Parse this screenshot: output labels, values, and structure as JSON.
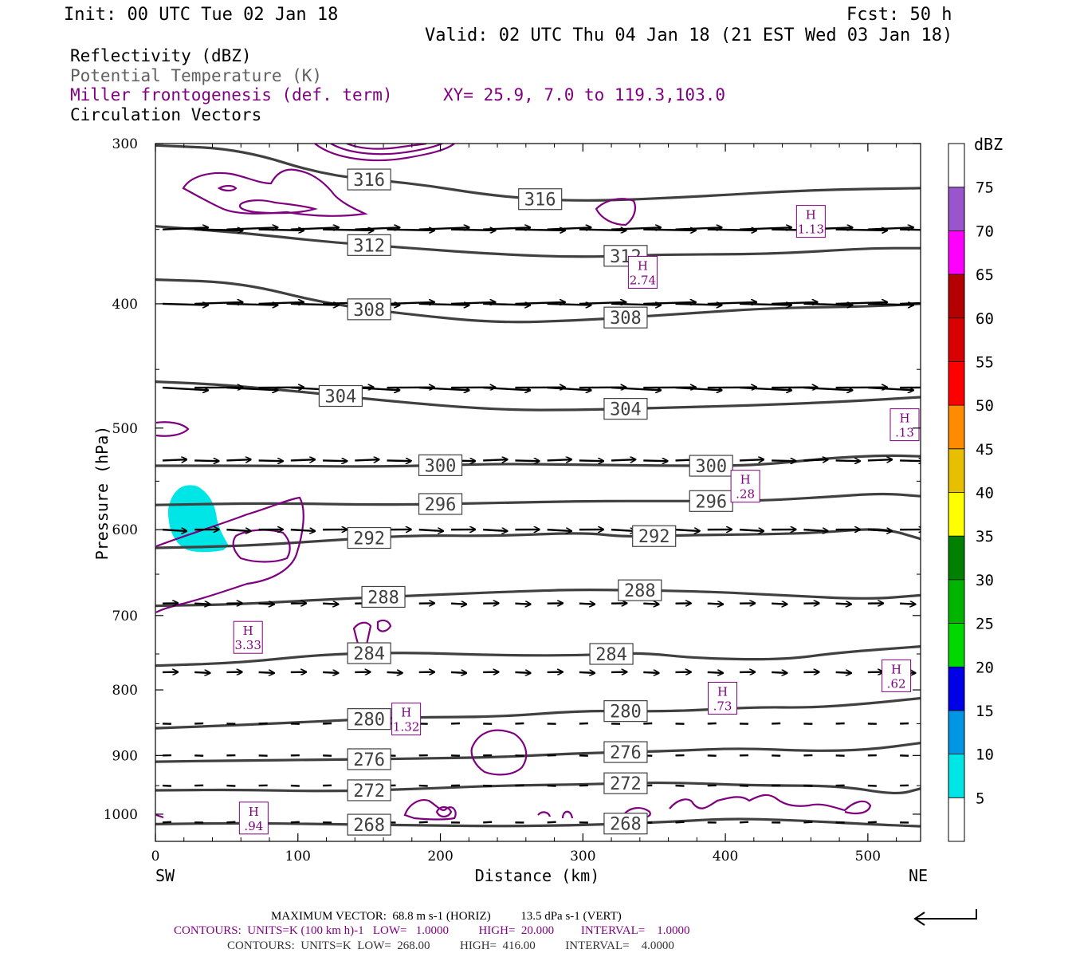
{
  "header": {
    "init": "Init: 00 UTC Tue 02 Jan 18",
    "fcst": "Fcst:   50 h",
    "valid": "Valid: 02 UTC Thu 04 Jan 18 (21 EST Wed 03 Jan 18)",
    "fields": [
      {
        "label": "Reflectivity (dBZ)",
        "color": "#000000"
      },
      {
        "label": "Potential Temperature (K)",
        "color": "#606060"
      },
      {
        "label": "Miller frontogenesis (def. term)",
        "color": "#7f007f"
      },
      {
        "label": "Circulation Vectors",
        "color": "#000000"
      }
    ],
    "xy": "XY=  25.9,  7.0 to 119.3,103.0"
  },
  "axes": {
    "ylabel": "Pressure (hPa)",
    "xlabel": "Distance (km)",
    "y_ticks": [
      "300",
      "400",
      "500",
      "600",
      "700",
      "800",
      "900",
      "1000"
    ],
    "x_ticks": [
      "0",
      "100",
      "200",
      "300",
      "400",
      "500"
    ],
    "left_end": "SW",
    "right_end": "NE"
  },
  "colorbar": {
    "title": "dBZ",
    "labels": [
      "5",
      "10",
      "15",
      "20",
      "25",
      "30",
      "35",
      "40",
      "45",
      "50",
      "55",
      "60",
      "65",
      "70",
      "75"
    ],
    "colors": [
      "#ffffff",
      "#00e5e5",
      "#0096e6",
      "#0000e6",
      "#00d800",
      "#00b400",
      "#008000",
      "#ffff00",
      "#e6c000",
      "#ff8c00",
      "#ff0000",
      "#d80000",
      "#b40000",
      "#ff00ff",
      "#9955cc",
      "#ffffff"
    ]
  },
  "footer": {
    "max_vector": "MAXIMUM VECTOR:  68.8 m s-1 (HORIZ)          13.5 dPa s-1 (VERT)",
    "contours_purple": "CONTOURS:  UNITS=K (100 km h)-1   LOW=   1.0000          HIGH=  20.000         INTERVAL=    1.0000",
    "contours_gray": "CONTOURS:  UNITS=K  LOW=  268.00          HIGH=  416.00          INTERVAL=    4.0000"
  },
  "chart_data": {
    "type": "line",
    "x_range": [
      0,
      537
    ],
    "y_range": [
      300,
      1050
    ],
    "y_log": true,
    "theta_contours": [
      {
        "label": "316",
        "points": [
          [
            0,
            301
          ],
          [
            60,
            303
          ],
          [
            120,
            318
          ],
          [
            180,
            322
          ],
          [
            240,
            330
          ],
          [
            300,
            333
          ],
          [
            380,
            330
          ],
          [
            460,
            326
          ],
          [
            537,
            325
          ]
        ]
      },
      {
        "label": "312",
        "points": [
          [
            0,
            348
          ],
          [
            60,
            352
          ],
          [
            120,
            358
          ],
          [
            180,
            362
          ],
          [
            240,
            366
          ],
          [
            300,
            368
          ],
          [
            360,
            366
          ],
          [
            430,
            366
          ],
          [
            500,
            362
          ],
          [
            537,
            362
          ]
        ]
      },
      {
        "label": "308",
        "points": [
          [
            0,
            383
          ],
          [
            60,
            385
          ],
          [
            120,
            400
          ],
          [
            180,
            408
          ],
          [
            240,
            414
          ],
          [
            300,
            412
          ],
          [
            360,
            408
          ],
          [
            430,
            403
          ],
          [
            500,
            402
          ],
          [
            537,
            400
          ]
        ]
      },
      {
        "label": "304",
        "points": [
          [
            0,
            460
          ],
          [
            40,
            462
          ],
          [
            100,
            468
          ],
          [
            160,
            476
          ],
          [
            240,
            484
          ],
          [
            300,
            484
          ],
          [
            360,
            482
          ],
          [
            420,
            480
          ],
          [
            480,
            477
          ],
          [
            537,
            473
          ]
        ]
      },
      {
        "label": "300",
        "points": [
          [
            0,
            535
          ],
          [
            80,
            535
          ],
          [
            160,
            536
          ],
          [
            240,
            533
          ],
          [
            300,
            534
          ],
          [
            360,
            535
          ],
          [
            420,
            535
          ],
          [
            470,
            528
          ],
          [
            510,
            525
          ],
          [
            537,
            526
          ]
        ]
      },
      {
        "label": "296",
        "points": [
          [
            0,
            574
          ],
          [
            80,
            572
          ],
          [
            160,
            574
          ],
          [
            240,
            572
          ],
          [
            300,
            570
          ],
          [
            360,
            570
          ],
          [
            420,
            570
          ],
          [
            470,
            566
          ],
          [
            510,
            562
          ],
          [
            537,
            565
          ]
        ]
      },
      {
        "label": "292",
        "points": [
          [
            0,
            620
          ],
          [
            60,
            618
          ],
          [
            120,
            612
          ],
          [
            180,
            606
          ],
          [
            240,
            607
          ],
          [
            300,
            603
          ],
          [
            330,
            608
          ],
          [
            370,
            606
          ],
          [
            430,
            605
          ],
          [
            470,
            603
          ],
          [
            510,
            598
          ],
          [
            537,
            610
          ]
        ]
      },
      {
        "label": "288",
        "points": [
          [
            0,
            688
          ],
          [
            60,
            686
          ],
          [
            120,
            680
          ],
          [
            200,
            674
          ],
          [
            260,
            670
          ],
          [
            300,
            668
          ],
          [
            380,
            670
          ],
          [
            440,
            675
          ],
          [
            500,
            680
          ],
          [
            537,
            675
          ]
        ]
      },
      {
        "label": "284",
        "points": [
          [
            0,
            766
          ],
          [
            60,
            762
          ],
          [
            120,
            750
          ],
          [
            180,
            748
          ],
          [
            240,
            752
          ],
          [
            300,
            752
          ],
          [
            340,
            748
          ],
          [
            380,
            756
          ],
          [
            440,
            758
          ],
          [
            480,
            748
          ],
          [
            537,
            740
          ]
        ]
      },
      {
        "label": "280",
        "points": [
          [
            0,
            857
          ],
          [
            60,
            852
          ],
          [
            120,
            846
          ],
          [
            180,
            840
          ],
          [
            240,
            840
          ],
          [
            300,
            830
          ],
          [
            360,
            832
          ],
          [
            420,
            825
          ],
          [
            460,
            826
          ],
          [
            500,
            820
          ],
          [
            537,
            812
          ]
        ]
      },
      {
        "label": "276",
        "points": [
          [
            0,
            910
          ],
          [
            60,
            908
          ],
          [
            120,
            907
          ],
          [
            180,
            905
          ],
          [
            240,
            903
          ],
          [
            300,
            896
          ],
          [
            360,
            893
          ],
          [
            410,
            888
          ],
          [
            460,
            893
          ],
          [
            500,
            891
          ],
          [
            537,
            880
          ]
        ]
      },
      {
        "label": "272",
        "points": [
          [
            0,
            958
          ],
          [
            60,
            957
          ],
          [
            120,
            960
          ],
          [
            180,
            956
          ],
          [
            240,
            950
          ],
          [
            300,
            948
          ],
          [
            360,
            944
          ],
          [
            420,
            950
          ],
          [
            480,
            950
          ],
          [
            520,
            966
          ],
          [
            537,
            955
          ]
        ]
      },
      {
        "label": "268",
        "points": [
          [
            0,
            1018
          ],
          [
            60,
            1016
          ],
          [
            120,
            1018
          ],
          [
            180,
            1020
          ],
          [
            240,
            1022
          ],
          [
            300,
            1020
          ],
          [
            360,
            1014
          ],
          [
            400,
            1008
          ],
          [
            440,
            1010
          ],
          [
            500,
            1018
          ],
          [
            537,
            1022
          ]
        ]
      }
    ],
    "frontogenesis_maxima": [
      {
        "label": "H",
        "value": "1.13",
        "x": 460,
        "p": 345
      },
      {
        "label": "H",
        "value": "2.74",
        "x": 342,
        "p": 378
      },
      {
        "label": "H",
        "value": ".13",
        "x": 530,
        "p": 497
      },
      {
        "label": "H",
        "value": ".28",
        "x": 414,
        "p": 555
      },
      {
        "label": "H",
        "value": "3.33",
        "x": 65,
        "p": 728
      },
      {
        "label": "H",
        "value": ".62",
        "x": 520,
        "p": 780
      },
      {
        "label": "H",
        "value": ".73",
        "x": 398,
        "p": 812
      },
      {
        "label": "H",
        "value": "1.32",
        "x": 176,
        "p": 843
      },
      {
        "label": "H",
        "value": ".94",
        "x": 69,
        "p": 1007
      }
    ],
    "vector_levels": [
      350,
      400,
      465,
      530,
      600,
      685,
      775,
      850,
      900,
      950,
      1015
    ],
    "reflectivity_area_dbz": 5
  }
}
